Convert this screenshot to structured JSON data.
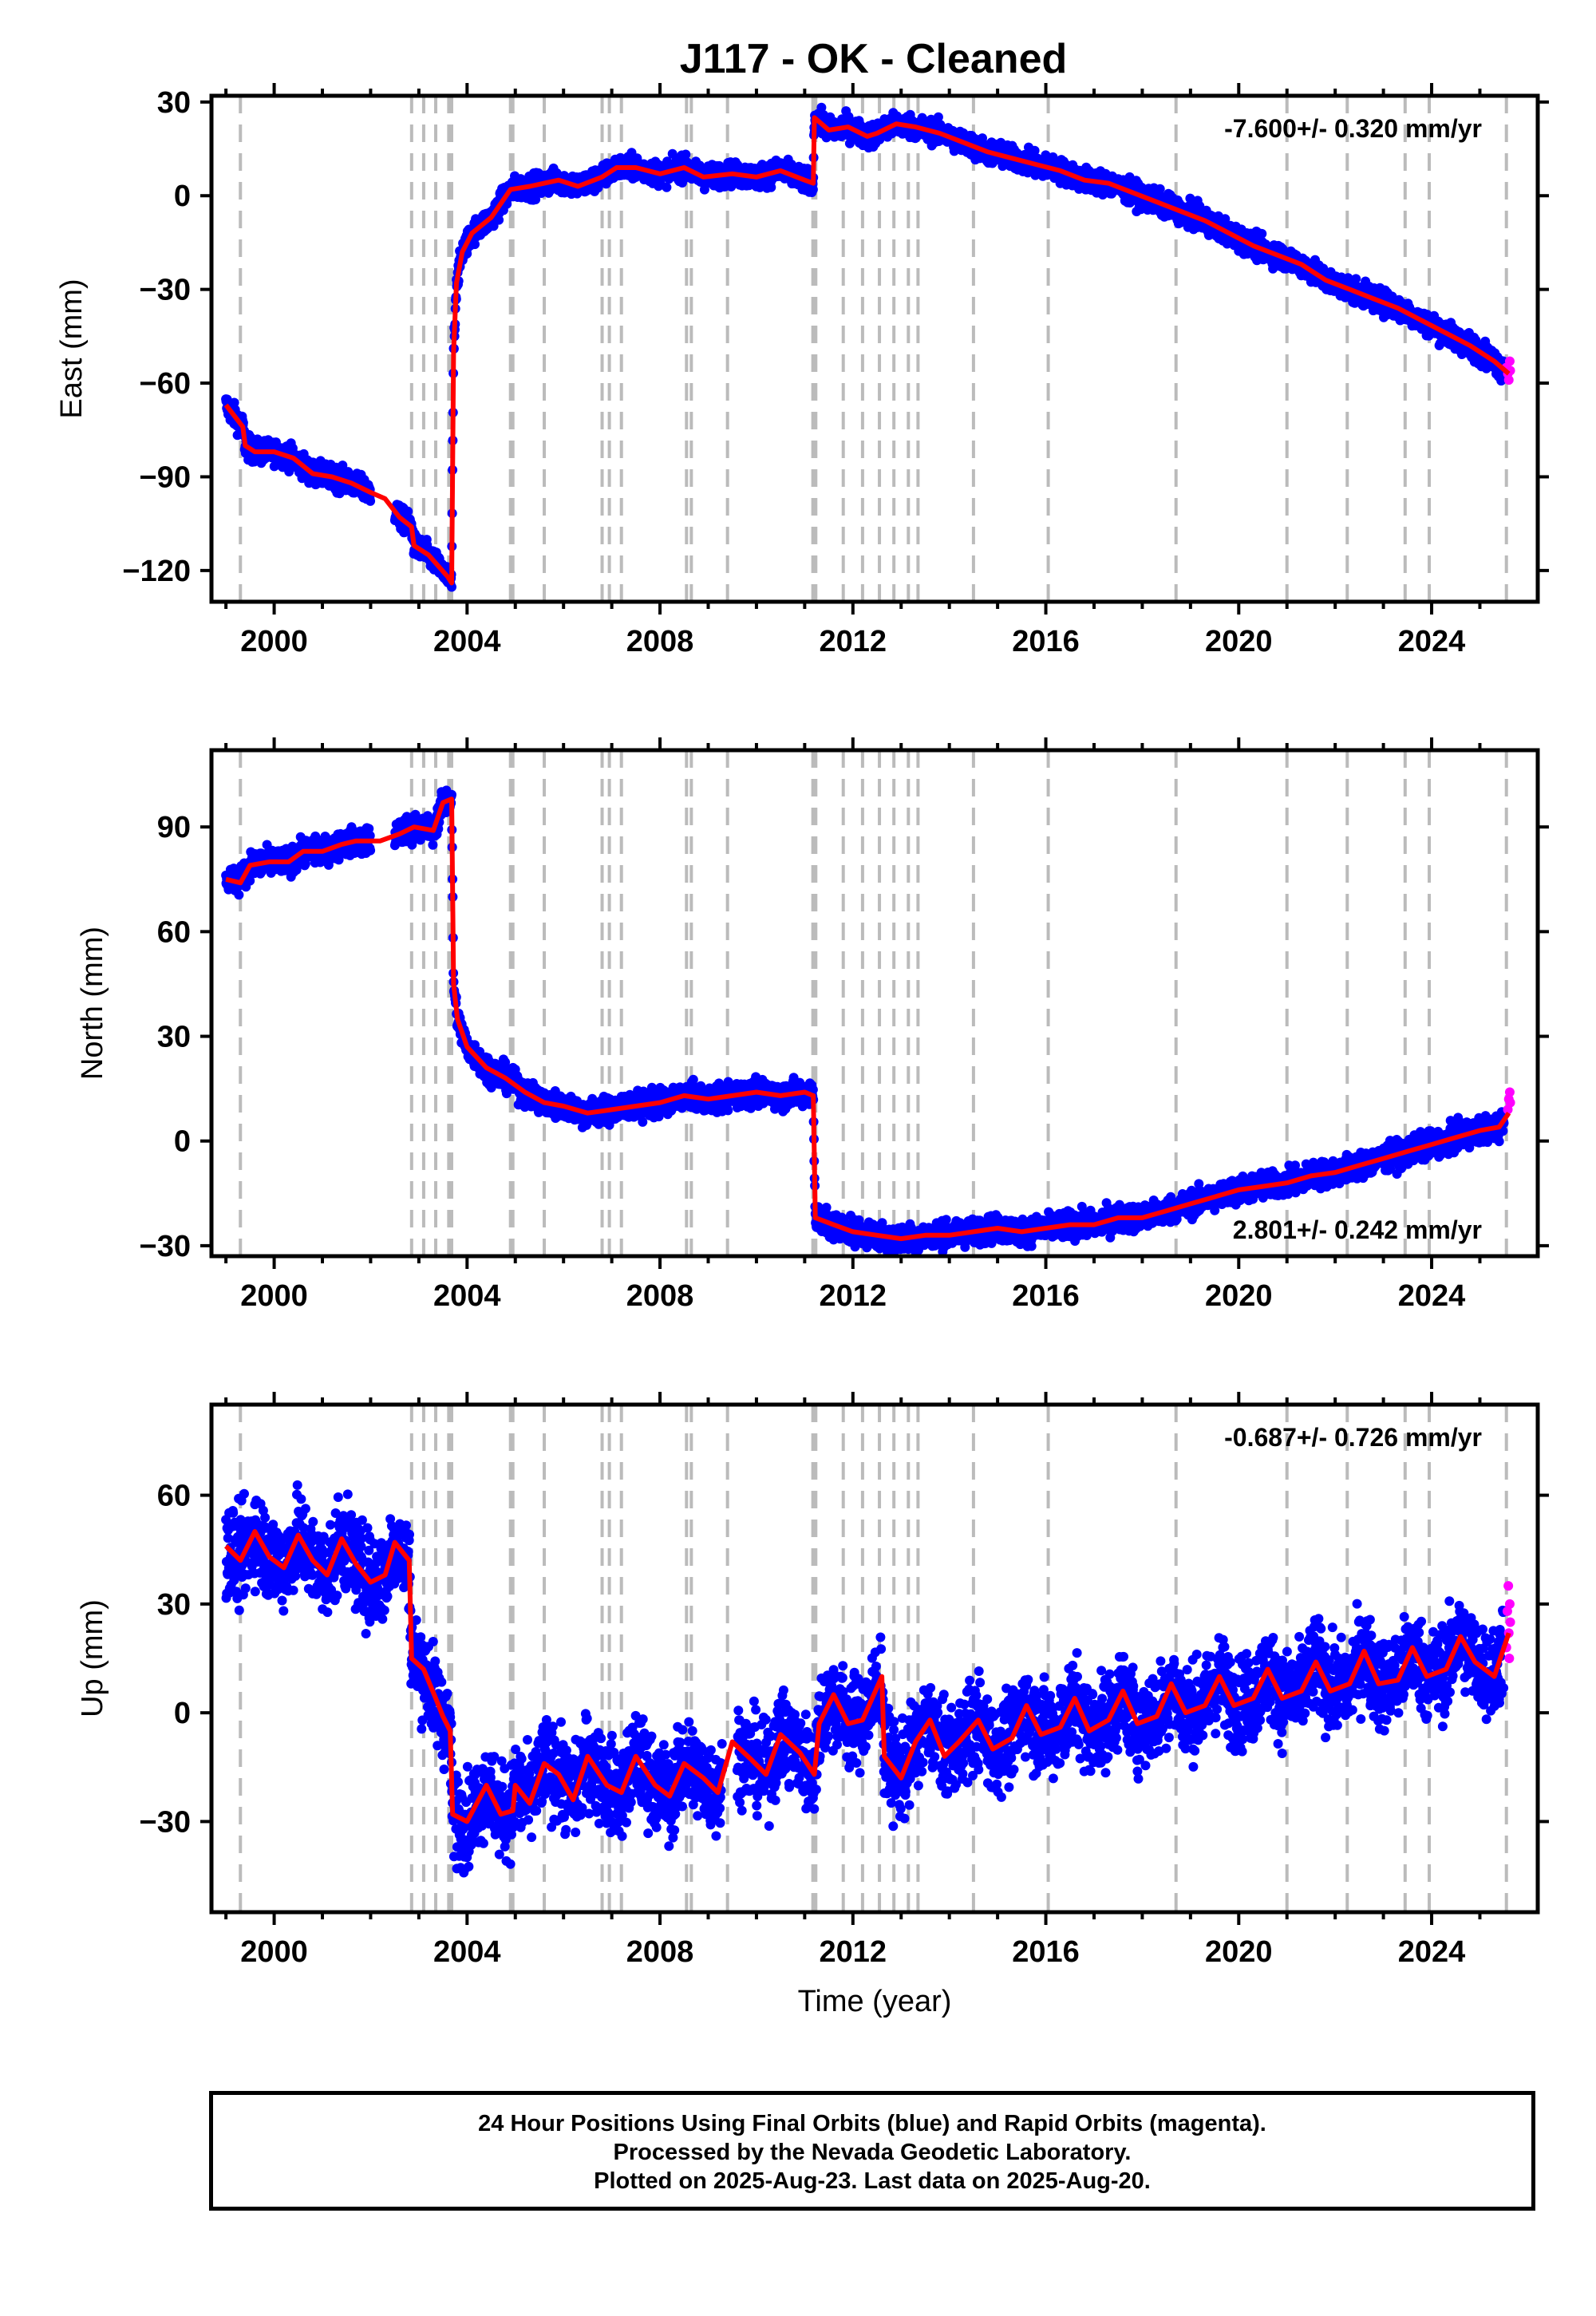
{
  "title": "J117  - OK - Cleaned",
  "footer": {
    "line1": "24 Hour Positions Using Final Orbits (blue) and Rapid Orbits (magenta).",
    "line2": "Processed by the Nevada Geodetic Laboratory.",
    "line3": "Plotted on 2025-Aug-23. Last data on 2025-Aug-20."
  },
  "colors": {
    "final_orbits": "#0000ff",
    "rapid_orbits": "#ff00ff",
    "model": "#ff0000",
    "event_lines": "#bbbbbb"
  },
  "chart_data": [
    {
      "type": "scatter",
      "panel": "east",
      "ylabel": "East (mm)",
      "xlabel": "",
      "xlim": [
        1998.7,
        2026.2
      ],
      "ylim": [
        -130,
        32
      ],
      "yticks": [
        30,
        0,
        -30,
        -60,
        -90,
        -120
      ],
      "xticks": [
        2000,
        2004,
        2008,
        2012,
        2016,
        2020,
        2024
      ],
      "rate_text": "-7.600+/- 0.320 mm/yr",
      "rate_position": "top-right",
      "grid": false,
      "event_lines": [
        1999.3,
        2002.85,
        2003.1,
        2003.35,
        2003.62,
        2003.68,
        2004.9,
        2004.95,
        2005.6,
        2006.8,
        2006.95,
        2007.2,
        2008.55,
        2008.65,
        2009.4,
        2011.17,
        2011.23,
        2011.8,
        2012.2,
        2012.55,
        2012.85,
        2013.15,
        2013.35,
        2014.5,
        2016.05,
        2018.7,
        2021.0,
        2022.25,
        2023.45,
        2023.95,
        2025.55
      ],
      "model": [
        [
          1999.0,
          -67
        ],
        [
          1999.35,
          -74
        ],
        [
          1999.4,
          -80
        ],
        [
          1999.6,
          -82
        ],
        [
          2000.0,
          -82
        ],
        [
          2000.4,
          -84
        ],
        [
          2000.8,
          -89
        ],
        [
          2001.2,
          -90
        ],
        [
          2001.6,
          -92
        ],
        [
          2002.0,
          -95
        ],
        [
          2002.3,
          -97
        ],
        [
          2002.6,
          -103
        ],
        [
          2002.85,
          -106
        ],
        [
          2002.9,
          -112
        ],
        [
          2003.2,
          -115
        ],
        [
          2003.6,
          -122
        ],
        [
          2003.68,
          -124
        ],
        [
          2003.72,
          -50
        ],
        [
          2003.78,
          -28
        ],
        [
          2003.9,
          -18
        ],
        [
          2004.1,
          -12
        ],
        [
          2004.5,
          -7
        ],
        [
          2004.9,
          2
        ],
        [
          2005.3,
          3
        ],
        [
          2005.6,
          4
        ],
        [
          2005.9,
          5
        ],
        [
          2006.3,
          3
        ],
        [
          2006.8,
          6
        ],
        [
          2007.1,
          9
        ],
        [
          2007.5,
          9
        ],
        [
          2008.0,
          7
        ],
        [
          2008.5,
          9
        ],
        [
          2008.9,
          6
        ],
        [
          2009.5,
          7
        ],
        [
          2010.0,
          6
        ],
        [
          2010.5,
          8
        ],
        [
          2011.0,
          5
        ],
        [
          2011.18,
          4
        ],
        [
          2011.2,
          25
        ],
        [
          2011.5,
          21
        ],
        [
          2011.9,
          22
        ],
        [
          2012.3,
          19
        ],
        [
          2012.5,
          20
        ],
        [
          2012.9,
          23
        ],
        [
          2013.3,
          22
        ],
        [
          2013.8,
          20
        ],
        [
          2014.3,
          17
        ],
        [
          2014.8,
          14
        ],
        [
          2015.3,
          12
        ],
        [
          2015.8,
          10
        ],
        [
          2016.3,
          8
        ],
        [
          2016.8,
          5
        ],
        [
          2017.3,
          4
        ],
        [
          2017.8,
          1
        ],
        [
          2018.3,
          -2
        ],
        [
          2018.8,
          -5
        ],
        [
          2019.3,
          -8
        ],
        [
          2019.8,
          -12
        ],
        [
          2020.3,
          -16
        ],
        [
          2020.8,
          -19
        ],
        [
          2021.3,
          -22
        ],
        [
          2021.8,
          -27
        ],
        [
          2022.3,
          -30
        ],
        [
          2022.8,
          -33
        ],
        [
          2023.3,
          -36
        ],
        [
          2023.8,
          -40
        ],
        [
          2024.3,
          -44
        ],
        [
          2024.8,
          -48
        ],
        [
          2025.3,
          -53
        ],
        [
          2025.6,
          -57
        ]
      ],
      "gaps": [
        [
          2002.0,
          2002.5
        ]
      ],
      "scatter_spread_mm": 3,
      "rapid_points": [
        [
          2025.55,
          -55
        ],
        [
          2025.58,
          -57
        ],
        [
          2025.6,
          -59
        ],
        [
          2025.62,
          -53
        ],
        [
          2025.63,
          -56
        ]
      ]
    },
    {
      "type": "scatter",
      "panel": "north",
      "ylabel": "North (mm)",
      "xlabel": "",
      "xlim": [
        1998.7,
        2026.2
      ],
      "ylim": [
        -33,
        112
      ],
      "yticks": [
        90,
        60,
        30,
        0,
        -30
      ],
      "xticks": [
        2000,
        2004,
        2008,
        2012,
        2016,
        2020,
        2024
      ],
      "rate_text": "2.801+/- 0.242 mm/yr",
      "rate_position": "bottom-right",
      "grid": false,
      "event_lines": [
        1999.3,
        2002.85,
        2003.1,
        2003.35,
        2003.62,
        2003.68,
        2004.9,
        2004.95,
        2005.6,
        2006.8,
        2006.95,
        2007.2,
        2008.55,
        2008.65,
        2009.4,
        2011.17,
        2011.23,
        2011.8,
        2012.2,
        2012.55,
        2012.85,
        2013.15,
        2013.35,
        2014.5,
        2016.05,
        2018.7,
        2021.0,
        2022.25,
        2023.45,
        2023.95,
        2025.55
      ],
      "model": [
        [
          1999.0,
          75
        ],
        [
          1999.3,
          74
        ],
        [
          1999.5,
          79
        ],
        [
          1999.9,
          80
        ],
        [
          2000.3,
          80
        ],
        [
          2000.6,
          83
        ],
        [
          2001.0,
          83
        ],
        [
          2001.4,
          85
        ],
        [
          2001.7,
          86
        ],
        [
          2002.2,
          86
        ],
        [
          2002.6,
          88
        ],
        [
          2002.9,
          90
        ],
        [
          2003.3,
          89
        ],
        [
          2003.5,
          97
        ],
        [
          2003.68,
          98
        ],
        [
          2003.72,
          45
        ],
        [
          2003.8,
          35
        ],
        [
          2004.0,
          27
        ],
        [
          2004.4,
          21
        ],
        [
          2004.8,
          18
        ],
        [
          2005.2,
          14
        ],
        [
          2005.6,
          11
        ],
        [
          2006.0,
          10
        ],
        [
          2006.5,
          8
        ],
        [
          2007.0,
          9
        ],
        [
          2007.5,
          10
        ],
        [
          2008.0,
          11
        ],
        [
          2008.5,
          13
        ],
        [
          2009.0,
          12
        ],
        [
          2009.5,
          13
        ],
        [
          2010.0,
          14
        ],
        [
          2010.5,
          13
        ],
        [
          2011.0,
          14
        ],
        [
          2011.18,
          13
        ],
        [
          2011.22,
          -22
        ],
        [
          2011.6,
          -24
        ],
        [
          2012.0,
          -26
        ],
        [
          2012.5,
          -27
        ],
        [
          2013.0,
          -28
        ],
        [
          2013.5,
          -27
        ],
        [
          2014.0,
          -27
        ],
        [
          2014.5,
          -26
        ],
        [
          2015.0,
          -25
        ],
        [
          2015.5,
          -26
        ],
        [
          2016.0,
          -25
        ],
        [
          2016.5,
          -24
        ],
        [
          2017.0,
          -24
        ],
        [
          2017.5,
          -22
        ],
        [
          2018.0,
          -22
        ],
        [
          2018.5,
          -20
        ],
        [
          2019.0,
          -18
        ],
        [
          2019.5,
          -16
        ],
        [
          2020.0,
          -14
        ],
        [
          2020.5,
          -13
        ],
        [
          2021.0,
          -12
        ],
        [
          2021.5,
          -10
        ],
        [
          2022.0,
          -9
        ],
        [
          2022.5,
          -7
        ],
        [
          2023.0,
          -5
        ],
        [
          2023.5,
          -3
        ],
        [
          2024.0,
          -1
        ],
        [
          2024.5,
          1
        ],
        [
          2025.0,
          3
        ],
        [
          2025.4,
          4
        ],
        [
          2025.6,
          8
        ]
      ],
      "gaps": [
        [
          2002.0,
          2002.5
        ]
      ],
      "scatter_spread_mm": 3,
      "rapid_points": [
        [
          2025.58,
          9
        ],
        [
          2025.6,
          12
        ],
        [
          2025.62,
          14
        ],
        [
          2025.63,
          11
        ]
      ]
    },
    {
      "type": "scatter",
      "panel": "up",
      "ylabel": "Up (mm)",
      "xlabel": "Time (year)",
      "xlim": [
        1998.7,
        2026.2
      ],
      "ylim": [
        -55,
        85
      ],
      "yticks": [
        60,
        30,
        0,
        -30
      ],
      "xticks": [
        2000,
        2004,
        2008,
        2012,
        2016,
        2020,
        2024
      ],
      "rate_text": "-0.687+/- 0.726 mm/yr",
      "rate_position": "top-right",
      "grid": false,
      "event_lines": [
        1999.3,
        2002.85,
        2003.1,
        2003.35,
        2003.62,
        2003.68,
        2004.9,
        2004.95,
        2005.6,
        2006.8,
        2006.95,
        2007.2,
        2008.55,
        2008.65,
        2009.4,
        2011.17,
        2011.23,
        2011.8,
        2012.2,
        2012.55,
        2012.85,
        2013.15,
        2013.35,
        2014.5,
        2016.05,
        2018.7,
        2021.0,
        2022.25,
        2023.45,
        2023.95,
        2025.55
      ],
      "model": [
        [
          1999.0,
          46
        ],
        [
          1999.3,
          42
        ],
        [
          1999.6,
          50
        ],
        [
          1999.9,
          43
        ],
        [
          2000.2,
          40
        ],
        [
          2000.5,
          49
        ],
        [
          2000.8,
          42
        ],
        [
          2001.1,
          38
        ],
        [
          2001.4,
          48
        ],
        [
          2001.7,
          41
        ],
        [
          2002.0,
          36
        ],
        [
          2002.3,
          38
        ],
        [
          2002.5,
          47
        ],
        [
          2002.8,
          42
        ],
        [
          2002.85,
          15
        ],
        [
          2003.1,
          12
        ],
        [
          2003.35,
          4
        ],
        [
          2003.5,
          -1
        ],
        [
          2003.65,
          -5
        ],
        [
          2003.7,
          -28
        ],
        [
          2004.0,
          -30
        ],
        [
          2004.4,
          -20
        ],
        [
          2004.7,
          -28
        ],
        [
          2004.95,
          -27
        ],
        [
          2005.0,
          -20
        ],
        [
          2005.3,
          -25
        ],
        [
          2005.6,
          -14
        ],
        [
          2005.9,
          -17
        ],
        [
          2006.2,
          -24
        ],
        [
          2006.5,
          -12
        ],
        [
          2006.9,
          -20
        ],
        [
          2007.2,
          -22
        ],
        [
          2007.5,
          -12
        ],
        [
          2007.9,
          -20
        ],
        [
          2008.2,
          -23
        ],
        [
          2008.5,
          -14
        ],
        [
          2008.9,
          -18
        ],
        [
          2009.2,
          -22
        ],
        [
          2009.5,
          -8
        ],
        [
          2009.9,
          -13
        ],
        [
          2010.2,
          -17
        ],
        [
          2010.5,
          -6
        ],
        [
          2010.9,
          -11
        ],
        [
          2011.2,
          -17
        ],
        [
          2011.3,
          -3
        ],
        [
          2011.6,
          5
        ],
        [
          2011.9,
          -3
        ],
        [
          2012.2,
          -2
        ],
        [
          2012.6,
          10
        ],
        [
          2012.65,
          -12
        ],
        [
          2013.0,
          -18
        ],
        [
          2013.3,
          -8
        ],
        [
          2013.6,
          -2
        ],
        [
          2013.9,
          -12
        ],
        [
          2014.2,
          -8
        ],
        [
          2014.6,
          -2
        ],
        [
          2014.9,
          -10
        ],
        [
          2015.3,
          -7
        ],
        [
          2015.6,
          2
        ],
        [
          2015.9,
          -6
        ],
        [
          2016.3,
          -4
        ],
        [
          2016.6,
          4
        ],
        [
          2016.9,
          -5
        ],
        [
          2017.3,
          -2
        ],
        [
          2017.6,
          6
        ],
        [
          2017.9,
          -3
        ],
        [
          2018.3,
          -1
        ],
        [
          2018.6,
          8
        ],
        [
          2018.9,
          0
        ],
        [
          2019.3,
          2
        ],
        [
          2019.6,
          10
        ],
        [
          2019.9,
          2
        ],
        [
          2020.3,
          4
        ],
        [
          2020.6,
          12
        ],
        [
          2020.9,
          4
        ],
        [
          2021.3,
          6
        ],
        [
          2021.6,
          14
        ],
        [
          2021.9,
          6
        ],
        [
          2022.3,
          8
        ],
        [
          2022.6,
          17
        ],
        [
          2022.9,
          8
        ],
        [
          2023.3,
          9
        ],
        [
          2023.6,
          18
        ],
        [
          2023.9,
          10
        ],
        [
          2024.3,
          12
        ],
        [
          2024.6,
          21
        ],
        [
          2024.9,
          14
        ],
        [
          2025.3,
          10
        ],
        [
          2025.6,
          22
        ]
      ],
      "gaps": [
        [
          2009.3,
          2009.6
        ]
      ],
      "scatter_spread_mm": 10,
      "rapid_points": [
        [
          2025.55,
          18
        ],
        [
          2025.57,
          28
        ],
        [
          2025.59,
          35
        ],
        [
          2025.6,
          22
        ],
        [
          2025.61,
          15
        ],
        [
          2025.62,
          30
        ],
        [
          2025.63,
          25
        ]
      ]
    }
  ]
}
